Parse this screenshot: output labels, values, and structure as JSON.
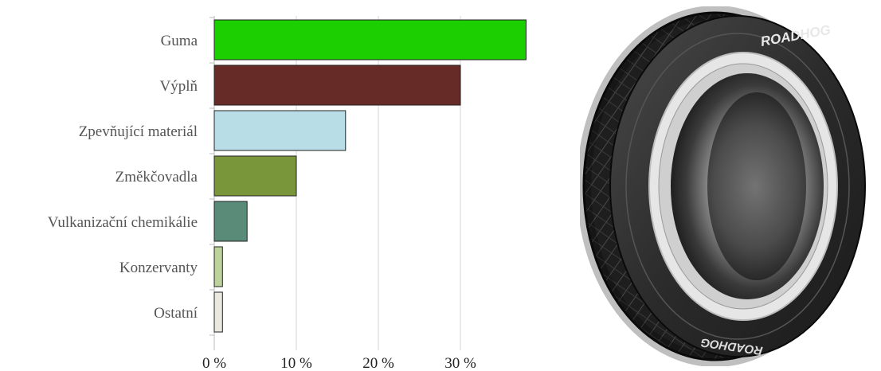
{
  "chart_data": {
    "type": "bar",
    "orientation": "horizontal",
    "categories": [
      "Guma",
      "Výplň",
      "Zpevňující materiál",
      "Změkčovadla",
      "Vulkanizační chemikálie",
      "Konzervanty",
      "Ostatní"
    ],
    "values": [
      38,
      30,
      16,
      10,
      4,
      1,
      1
    ],
    "colors": [
      "#1ccf00",
      "#662a27",
      "#b8dde6",
      "#7a963a",
      "#5a8b78",
      "#bcd39b",
      "#ebe8df"
    ],
    "xticks": [
      0,
      10,
      20,
      30
    ],
    "xtick_labels": [
      "0 %",
      "10 %",
      "20 %",
      "30 %"
    ],
    "xlim": [
      0,
      38
    ],
    "grid": "vertical",
    "title": "",
    "xlabel": "",
    "ylabel": ""
  },
  "illustration": {
    "brand": "ROADHOG"
  }
}
